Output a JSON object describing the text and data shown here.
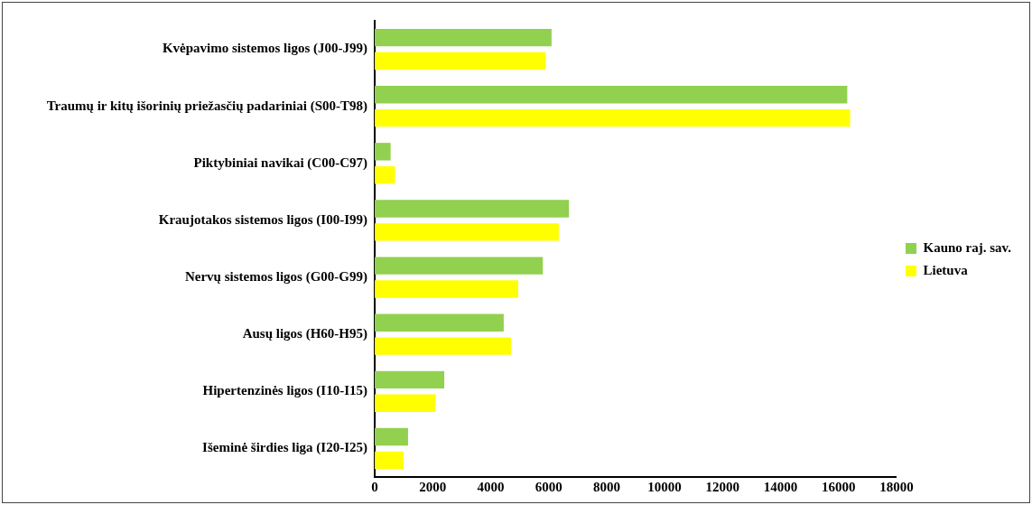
{
  "chart_data": {
    "type": "bar",
    "orientation": "horizontal",
    "categories": [
      "Kvėpavimo sistemos ligos (J00-J99)",
      "Traumų ir kitų išorinių priežasčių padariniai (S00-T98)",
      "Piktybiniai navikai (C00-C97)",
      "Kraujotakos sistemos ligos (I00-I99)",
      "Nervų sistemos ligos (G00-G99)",
      "Ausų ligos (H60-H95)",
      "Hipertenzinės ligos (I10-I15)",
      "Išeminė širdies liga (I20-I25)"
    ],
    "series": [
      {
        "name": "Kauno raj. sav.",
        "color": "#92d050",
        "values": [
          6100,
          16300,
          550,
          6700,
          5800,
          4450,
          2400,
          1150
        ]
      },
      {
        "name": "Lietuva",
        "color": "#ffff00",
        "values": [
          5900,
          16400,
          700,
          6350,
          4950,
          4700,
          2100,
          1000
        ]
      }
    ],
    "xlim": [
      0,
      18000
    ],
    "xticks": [
      0,
      2000,
      4000,
      6000,
      8000,
      10000,
      12000,
      14000,
      16000,
      18000
    ],
    "grid": false,
    "legend": "right"
  }
}
